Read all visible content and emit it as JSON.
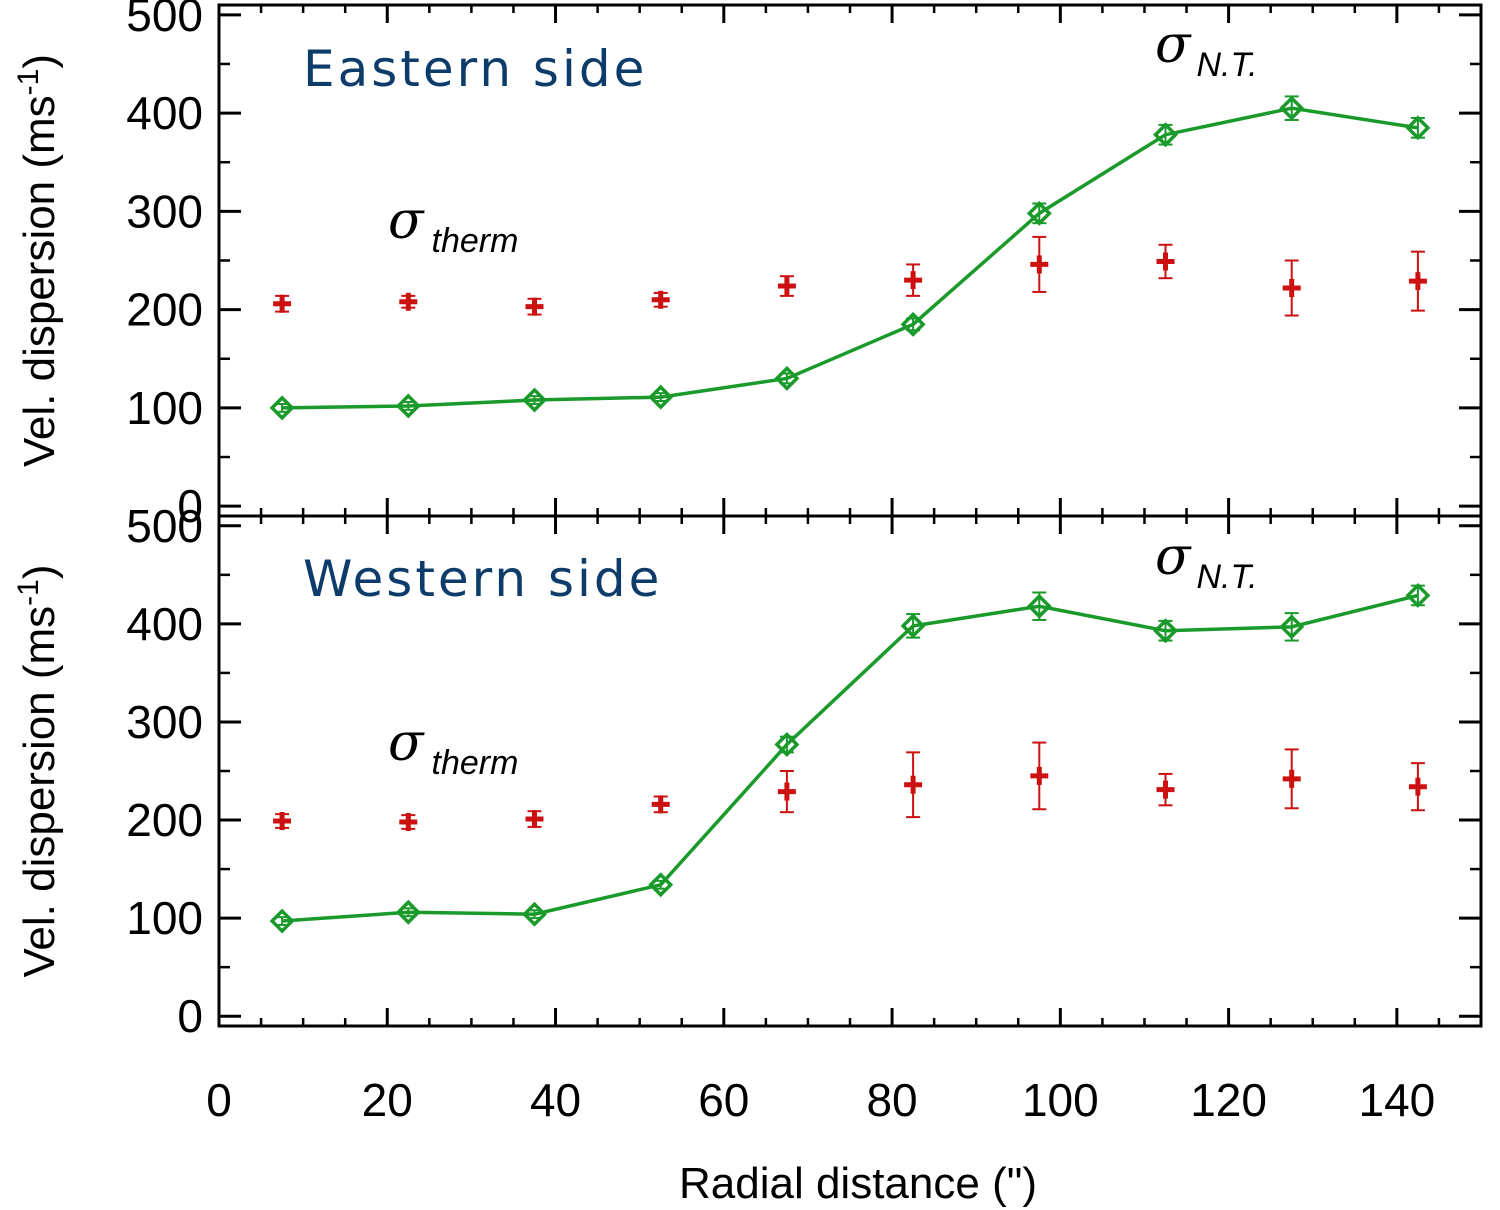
{
  "colors": {
    "nonthermal": "#1a9a2a",
    "thermal": "#cc1111",
    "panel_title": "#0d3c6b",
    "axis": "#000000"
  },
  "shared_xlabel": "Radial distance (\")",
  "chart_data": [
    {
      "type": "line",
      "title": "Eastern side",
      "xlabel": "",
      "ylabel_main": "Vel. dispersion (ms",
      "ylabel_sup": "-1",
      "ylabel_end": ")",
      "xlim": [
        0,
        150
      ],
      "ylim": [
        -10,
        510
      ],
      "x_ticks": [
        0,
        20,
        40,
        60,
        80,
        100,
        120,
        140
      ],
      "y_ticks": [
        0,
        100,
        200,
        300,
        400,
        500
      ],
      "x_tick_labels": [],
      "y_tick_labels": [
        "0",
        "100",
        "200",
        "300",
        "400",
        "500"
      ],
      "annotations": {
        "nonthermal_sym": "σ",
        "nonthermal_sub": "N.T.",
        "thermal_sym": "σ",
        "thermal_sub": "therm"
      },
      "series": [
        {
          "marker": "diamond",
          "line": true,
          "x": [
            7.5,
            22.5,
            37.5,
            52.5,
            67.5,
            82.5,
            97.5,
            112.5,
            127.5,
            142.5
          ],
          "y": [
            100,
            102,
            108,
            111,
            130,
            185,
            298,
            378,
            405,
            385
          ],
          "err": [
            4,
            4,
            4,
            4,
            5,
            6,
            10,
            10,
            12,
            10
          ]
        },
        {
          "marker": "plus",
          "line": false,
          "x": [
            7.5,
            22.5,
            37.5,
            52.5,
            67.5,
            82.5,
            97.5,
            112.5,
            127.5,
            142.5
          ],
          "y": [
            206,
            208,
            203,
            210,
            224,
            230,
            246,
            249,
            222,
            229
          ],
          "err": [
            8,
            6,
            8,
            7,
            10,
            16,
            28,
            17,
            28,
            30
          ]
        }
      ]
    },
    {
      "type": "line",
      "title": "Western side",
      "xlabel": "Radial distance (\")",
      "ylabel_main": "Vel. dispersion (ms",
      "ylabel_sup": "-1",
      "ylabel_end": ")",
      "xlim": [
        0,
        150
      ],
      "ylim": [
        -10,
        510
      ],
      "x_ticks": [
        0,
        20,
        40,
        60,
        80,
        100,
        120,
        140
      ],
      "y_ticks": [
        0,
        100,
        200,
        300,
        400,
        500
      ],
      "x_tick_labels": [
        "0",
        "20",
        "40",
        "60",
        "80",
        "100",
        "120",
        "140"
      ],
      "y_tick_labels": [
        "0",
        "100",
        "200",
        "300",
        "400",
        "500"
      ],
      "annotations": {
        "nonthermal_sym": "σ",
        "nonthermal_sub": "N.T.",
        "thermal_sym": "σ",
        "thermal_sub": "therm"
      },
      "series": [
        {
          "marker": "diamond",
          "line": true,
          "x": [
            7.5,
            22.5,
            37.5,
            52.5,
            67.5,
            82.5,
            97.5,
            112.5,
            127.5,
            142.5
          ],
          "y": [
            97,
            106,
            104,
            134,
            277,
            398,
            418,
            393,
            397,
            429
          ],
          "err": [
            4,
            4,
            4,
            4,
            8,
            12,
            14,
            10,
            14,
            10
          ]
        },
        {
          "marker": "plus",
          "line": false,
          "x": [
            7.5,
            22.5,
            37.5,
            52.5,
            67.5,
            82.5,
            97.5,
            112.5,
            127.5,
            142.5
          ],
          "y": [
            199,
            198,
            201,
            216,
            229,
            236,
            245,
            231,
            242,
            234
          ],
          "err": [
            7,
            7,
            8,
            8,
            21,
            33,
            34,
            16,
            30,
            24
          ]
        }
      ]
    }
  ]
}
